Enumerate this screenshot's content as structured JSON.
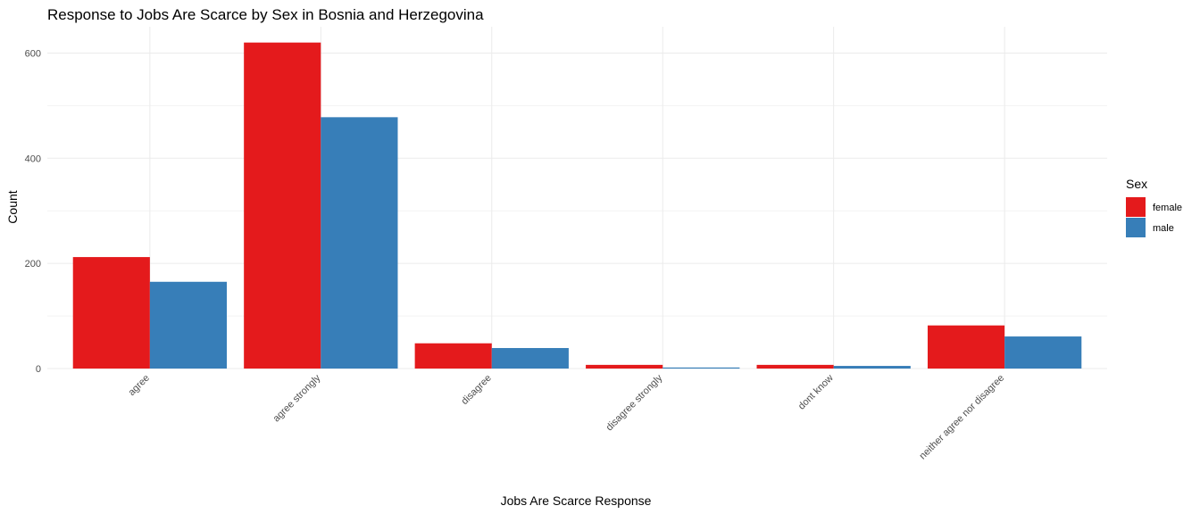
{
  "chart_data": {
    "type": "bar",
    "title": "Response to Jobs Are Scarce by Sex in Bosnia and Herzegovina",
    "xlabel": "Jobs Are Scarce Response",
    "ylabel": "Count",
    "categories": [
      "agree",
      "agree strongly",
      "disagree",
      "disagree strongly",
      "dont know",
      "neither agree nor disagree"
    ],
    "series": [
      {
        "name": "female",
        "color": "#E41A1C",
        "values": [
          212,
          620,
          48,
          7,
          7,
          82
        ]
      },
      {
        "name": "male",
        "color": "#377EB8",
        "values": [
          165,
          478,
          39,
          2,
          5,
          61
        ]
      }
    ],
    "ylim": [
      0,
      650
    ],
    "yticks": [
      0,
      200,
      400,
      600
    ],
    "grid": true,
    "legend": {
      "title": "Sex",
      "position": "right"
    }
  }
}
